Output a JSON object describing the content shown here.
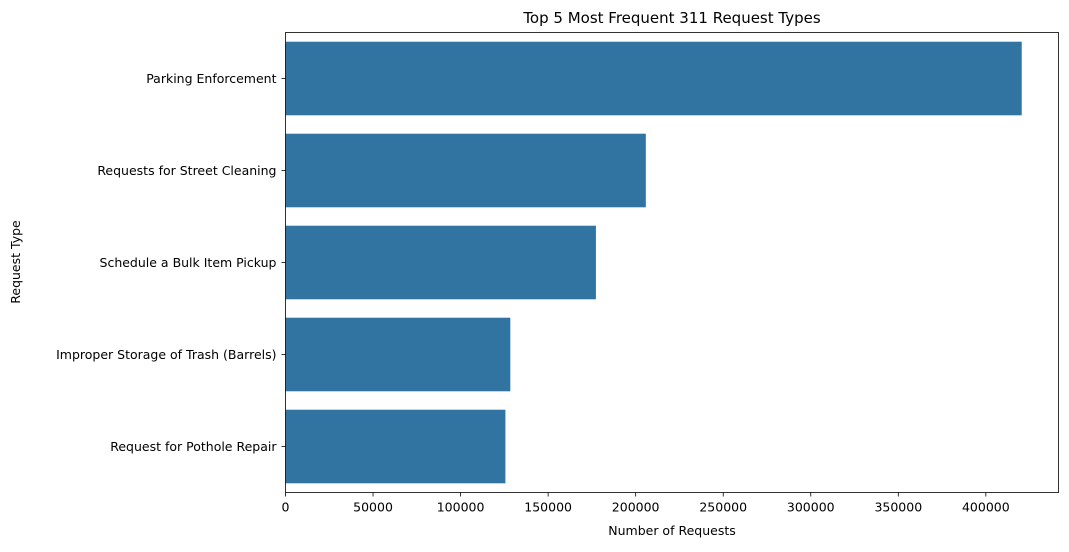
{
  "chart_data": {
    "type": "bar",
    "orientation": "horizontal",
    "title": "Top 5 Most Frequent 311 Request Types",
    "xlabel": "Number of Requests",
    "ylabel": "Request Type",
    "categories": [
      "Parking Enforcement",
      "Requests for Street Cleaning",
      "Schedule a Bulk Item Pickup",
      "Improper Storage of Trash (Barrels)",
      "Request for Pothole Repair"
    ],
    "values": [
      420500,
      205800,
      177300,
      128400,
      125600
    ],
    "xlim": [
      0,
      441500
    ],
    "xticks": [
      0,
      50000,
      100000,
      150000,
      200000,
      250000,
      300000,
      350000,
      400000
    ],
    "xtick_labels": [
      "0",
      "50000",
      "100000",
      "150000",
      "200000",
      "250000",
      "300000",
      "350000",
      "400000"
    ],
    "grid": false,
    "legend": "none",
    "bar_color": "#3274a1"
  }
}
